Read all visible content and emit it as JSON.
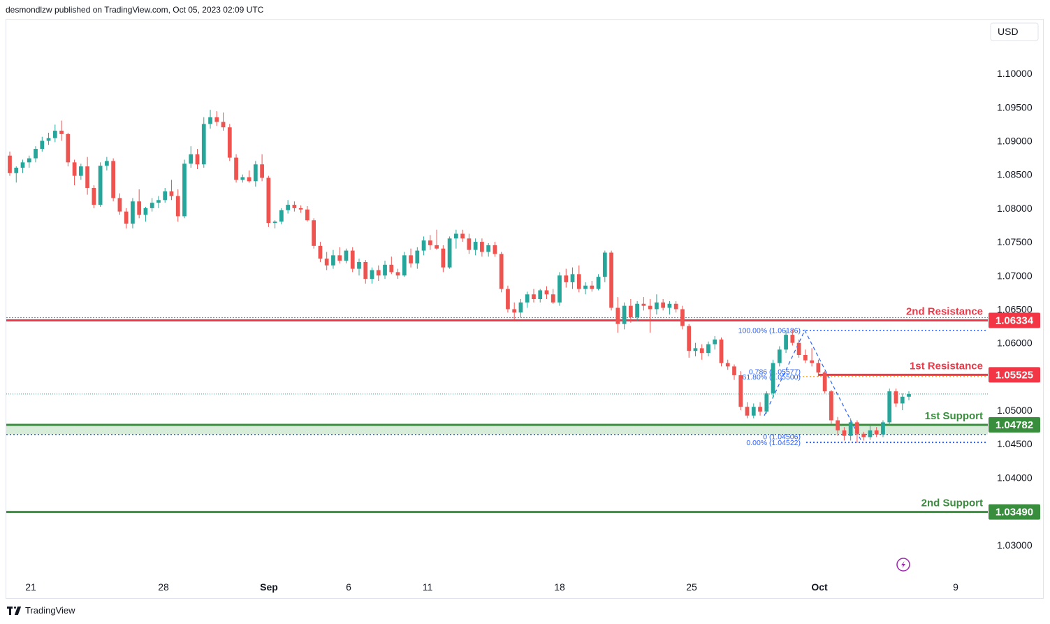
{
  "header": {
    "publisher_text": "desmondlzw published on TradingView.com, Oct 05, 2023 02:09 UTC"
  },
  "footer": {
    "brand": "TradingView"
  },
  "price_axis": {
    "currency": "USD"
  },
  "colors": {
    "up": "#26a69a",
    "down": "#ef5350",
    "resistance": "#f23645",
    "support": "#388e3c",
    "fib": "#2962ff",
    "fib_mid": "#f9a825",
    "support_zone": "#c8e6c9"
  },
  "chart_data": {
    "type": "candlestick",
    "symbol_quote": "USD",
    "ylim": [
      1.025,
      1.108
    ],
    "y_ticks": [
      "1.10000",
      "1.09500",
      "1.09000",
      "1.08500",
      "1.08000",
      "1.07500",
      "1.07000",
      "1.06500",
      "1.06000",
      "1.05500",
      "1.05000",
      "1.04500",
      "1.04000",
      "1.03000"
    ],
    "x_ticks": [
      "21",
      "28",
      "Sep",
      "6",
      "11",
      "18",
      "25",
      "Oct",
      "9"
    ],
    "levels": [
      {
        "name": "2nd Resistance",
        "value": "1.06334",
        "kind": "resistance"
      },
      {
        "name": "1st Resistance",
        "value": "1.05525",
        "kind": "resistance"
      },
      {
        "name": "1st Support",
        "value": "1.04782",
        "kind": "support"
      },
      {
        "name": "2nd Support",
        "value": "1.03490",
        "kind": "support"
      }
    ],
    "fib_labels": {
      "top": "100.00% (1.06186)",
      "mid_a": "0.786 (1.05577)",
      "mid_b": "61.80% (1.05500)",
      "bottom_a": "0 (1.04506)",
      "bottom_b": "0.00% (1.04522)"
    },
    "candles": [
      [
        1.0878,
        1.0884,
        1.0848,
        1.0852
      ],
      [
        1.0852,
        1.0862,
        1.0838,
        1.086
      ],
      [
        1.086,
        1.0872,
        1.0852,
        1.0868
      ],
      [
        1.0868,
        1.0878,
        1.086,
        1.0874
      ],
      [
        1.0874,
        1.0892,
        1.0868,
        1.0888
      ],
      [
        1.0888,
        1.0906,
        1.0884,
        1.09
      ],
      [
        1.09,
        1.0912,
        1.0894,
        1.0904
      ],
      [
        1.0904,
        1.0924,
        1.0898,
        1.0915
      ],
      [
        1.0915,
        1.093,
        1.09,
        1.091
      ],
      [
        1.091,
        1.0912,
        1.0862,
        1.0868
      ],
      [
        1.0868,
        1.0872,
        1.0834,
        1.0848
      ],
      [
        1.0848,
        1.0866,
        1.0842,
        1.0862
      ],
      [
        1.0862,
        1.0876,
        1.082,
        1.083
      ],
      [
        1.083,
        1.0834,
        1.08,
        1.0805
      ],
      [
        1.0805,
        1.0868,
        1.0802,
        1.0863
      ],
      [
        1.0863,
        1.0876,
        1.0856,
        1.087
      ],
      [
        1.087,
        1.0874,
        1.081,
        1.0815
      ],
      [
        1.0815,
        1.0822,
        1.079,
        1.0795
      ],
      [
        1.0795,
        1.08,
        1.077,
        1.0777
      ],
      [
        1.0777,
        1.0815,
        1.077,
        1.081
      ],
      [
        1.081,
        1.0828,
        1.0785,
        1.079
      ],
      [
        1.079,
        1.0802,
        1.078,
        1.08
      ],
      [
        1.08,
        1.0815,
        1.0795,
        1.0808
      ],
      [
        1.0808,
        1.0818,
        1.08,
        1.0812
      ],
      [
        1.0812,
        1.083,
        1.0808,
        1.0825
      ],
      [
        1.0825,
        1.0842,
        1.0812,
        1.0818
      ],
      [
        1.0818,
        1.0828,
        1.078,
        1.0788
      ],
      [
        1.0788,
        1.0872,
        1.0785,
        1.0866
      ],
      [
        1.0866,
        1.0892,
        1.086,
        1.088
      ],
      [
        1.088,
        1.0888,
        1.0858,
        1.0865
      ],
      [
        1.0865,
        1.0935,
        1.086,
        1.0925
      ],
      [
        1.0925,
        1.0946,
        1.0918,
        1.0935
      ],
      [
        1.0935,
        1.0944,
        1.0922,
        1.0928
      ],
      [
        1.0928,
        1.0942,
        1.0915,
        1.092
      ],
      [
        1.092,
        1.0925,
        1.087,
        1.0875
      ],
      [
        1.0875,
        1.088,
        1.0838,
        1.0842
      ],
      [
        1.0842,
        1.085,
        1.0838,
        1.0846
      ],
      [
        1.0846,
        1.0856,
        1.0838,
        1.084
      ],
      [
        1.084,
        1.087,
        1.0832,
        1.0865
      ],
      [
        1.0865,
        1.088,
        1.084,
        1.0845
      ],
      [
        1.0845,
        1.0848,
        1.0772,
        1.0778
      ],
      [
        1.0778,
        1.0782,
        1.077,
        1.078
      ],
      [
        1.078,
        1.08,
        1.0776,
        1.0797
      ],
      [
        1.0797,
        1.0812,
        1.0792,
        1.0805
      ],
      [
        1.0805,
        1.081,
        1.0795,
        1.08
      ],
      [
        1.08,
        1.0804,
        1.0793,
        1.0798
      ],
      [
        1.0798,
        1.0803,
        1.078,
        1.0782
      ],
      [
        1.0782,
        1.0785,
        1.074,
        1.0744
      ],
      [
        1.0744,
        1.075,
        1.072,
        1.0725
      ],
      [
        1.0725,
        1.0735,
        1.0708,
        1.0715
      ],
      [
        1.0715,
        1.0738,
        1.071,
        1.073
      ],
      [
        1.073,
        1.0742,
        1.0718,
        1.0722
      ],
      [
        1.0722,
        1.074,
        1.0718,
        1.0737
      ],
      [
        1.0737,
        1.0742,
        1.0705,
        1.071
      ],
      [
        1.071,
        1.0725,
        1.07,
        1.072
      ],
      [
        1.072,
        1.0723,
        1.0688,
        1.0695
      ],
      [
        1.0695,
        1.0712,
        1.0688,
        1.0708
      ],
      [
        1.0708,
        1.0715,
        1.0692,
        1.07
      ],
      [
        1.07,
        1.0722,
        1.0695,
        1.0716
      ],
      [
        1.0716,
        1.0728,
        1.0702,
        1.0705
      ],
      [
        1.0705,
        1.071,
        1.0695,
        1.07
      ],
      [
        1.07,
        1.0735,
        1.0698,
        1.073
      ],
      [
        1.073,
        1.074,
        1.0712,
        1.0718
      ],
      [
        1.0718,
        1.0742,
        1.071,
        1.0737
      ],
      [
        1.0737,
        1.0758,
        1.073,
        1.0752
      ],
      [
        1.0752,
        1.076,
        1.0738,
        1.0745
      ],
      [
        1.0745,
        1.0768,
        1.0738,
        1.074
      ],
      [
        1.074,
        1.0745,
        1.0705,
        1.0712
      ],
      [
        1.0712,
        1.0758,
        1.071,
        1.0755
      ],
      [
        1.0755,
        1.0768,
        1.074,
        1.0762
      ],
      [
        1.0762,
        1.0768,
        1.075,
        1.0755
      ],
      [
        1.0755,
        1.0762,
        1.0732,
        1.0738
      ],
      [
        1.0738,
        1.0755,
        1.073,
        1.075
      ],
      [
        1.075,
        1.0755,
        1.0728,
        1.0735
      ],
      [
        1.0735,
        1.0748,
        1.0728,
        1.0745
      ],
      [
        1.0745,
        1.075,
        1.0728,
        1.0732
      ],
      [
        1.0732,
        1.0735,
        1.0675,
        1.068
      ],
      [
        1.068,
        1.0685,
        1.0645,
        1.065
      ],
      [
        1.065,
        1.066,
        1.0635,
        1.0645
      ],
      [
        1.0645,
        1.0665,
        1.0638,
        1.066
      ],
      [
        1.066,
        1.0676,
        1.0652,
        1.0672
      ],
      [
        1.0672,
        1.068,
        1.066,
        1.0665
      ],
      [
        1.0665,
        1.068,
        1.066,
        1.0678
      ],
      [
        1.0678,
        1.0684,
        1.0665,
        1.0672
      ],
      [
        1.0672,
        1.068,
        1.0658,
        1.066
      ],
      [
        1.066,
        1.0705,
        1.0655,
        1.07
      ],
      [
        1.07,
        1.071,
        1.0682,
        1.069
      ],
      [
        1.069,
        1.0712,
        1.068,
        1.0702
      ],
      [
        1.0702,
        1.0715,
        1.0675,
        1.068
      ],
      [
        1.068,
        1.069,
        1.0672,
        1.0685
      ],
      [
        1.0685,
        1.0692,
        1.0676,
        1.068
      ],
      [
        1.068,
        1.0702,
        1.0678,
        1.0698
      ],
      [
        1.0698,
        1.0737,
        1.069,
        1.0734
      ],
      [
        1.0734,
        1.0737,
        1.0648,
        1.0652
      ],
      [
        1.0652,
        1.0668,
        1.0615,
        1.0628
      ],
      [
        1.0628,
        1.066,
        1.062,
        1.0655
      ],
      [
        1.0655,
        1.0665,
        1.063,
        1.0638
      ],
      [
        1.0638,
        1.0662,
        1.0632,
        1.0658
      ],
      [
        1.0658,
        1.0668,
        1.0648,
        1.0655
      ],
      [
        1.0655,
        1.0665,
        1.0615,
        1.065
      ],
      [
        1.065,
        1.0672,
        1.0642,
        1.066
      ],
      [
        1.066,
        1.0665,
        1.0648,
        1.0652
      ],
      [
        1.0652,
        1.0662,
        1.0642,
        1.0658
      ],
      [
        1.0658,
        1.0662,
        1.0645,
        1.065
      ],
      [
        1.065,
        1.0655,
        1.062,
        1.0625
      ],
      [
        1.0625,
        1.0628,
        1.0578,
        1.0588
      ],
      [
        1.0588,
        1.06,
        1.058,
        1.0592
      ],
      [
        1.0592,
        1.0598,
        1.0575,
        1.0585
      ],
      [
        1.0585,
        1.0602,
        1.058,
        1.0598
      ],
      [
        1.0598,
        1.061,
        1.059,
        1.0605
      ],
      [
        1.0605,
        1.0608,
        1.0565,
        1.057
      ],
      [
        1.057,
        1.0575,
        1.056,
        1.0565
      ],
      [
        1.0565,
        1.0568,
        1.0545,
        1.0552
      ],
      [
        1.0552,
        1.0558,
        1.05,
        1.0505
      ],
      [
        1.0505,
        1.0512,
        1.0488,
        1.0492
      ],
      [
        1.0492,
        1.051,
        1.0488,
        1.0505
      ],
      [
        1.0505,
        1.0512,
        1.0492,
        1.0498
      ],
      [
        1.0498,
        1.0528,
        1.0495,
        1.0525
      ],
      [
        1.0525,
        1.0575,
        1.0518,
        1.057
      ],
      [
        1.057,
        1.0595,
        1.0565,
        1.059
      ],
      [
        1.059,
        1.0619,
        1.0585,
        1.0612
      ],
      [
        1.0612,
        1.062,
        1.0596,
        1.06
      ],
      [
        1.06,
        1.0605,
        1.0578,
        1.0582
      ],
      [
        1.0582,
        1.059,
        1.057,
        1.0574
      ],
      [
        1.0574,
        1.0592,
        1.0565,
        1.057
      ],
      [
        1.057,
        1.0575,
        1.055,
        1.0556
      ],
      [
        1.0556,
        1.0558,
        1.0525,
        1.0528
      ],
      [
        1.0528,
        1.053,
        1.048,
        1.0485
      ],
      [
        1.0485,
        1.049,
        1.0462,
        1.047
      ],
      [
        1.047,
        1.0475,
        1.0455,
        1.0462
      ],
      [
        1.0462,
        1.0488,
        1.0455,
        1.0482
      ],
      [
        1.0482,
        1.0485,
        1.0452,
        1.0465
      ],
      [
        1.0465,
        1.0468,
        1.0455,
        1.046
      ],
      [
        1.046,
        1.0478,
        1.0456,
        1.047
      ],
      [
        1.047,
        1.0475,
        1.046,
        1.0464
      ],
      [
        1.0464,
        1.0485,
        1.046,
        1.0482
      ],
      [
        1.0482,
        1.0532,
        1.0478,
        1.0528
      ],
      [
        1.0528,
        1.0532,
        1.0505,
        1.051
      ],
      [
        1.051,
        1.0525,
        1.05,
        1.052
      ],
      [
        1.052,
        1.0528,
        1.0515,
        1.0524
      ]
    ]
  }
}
